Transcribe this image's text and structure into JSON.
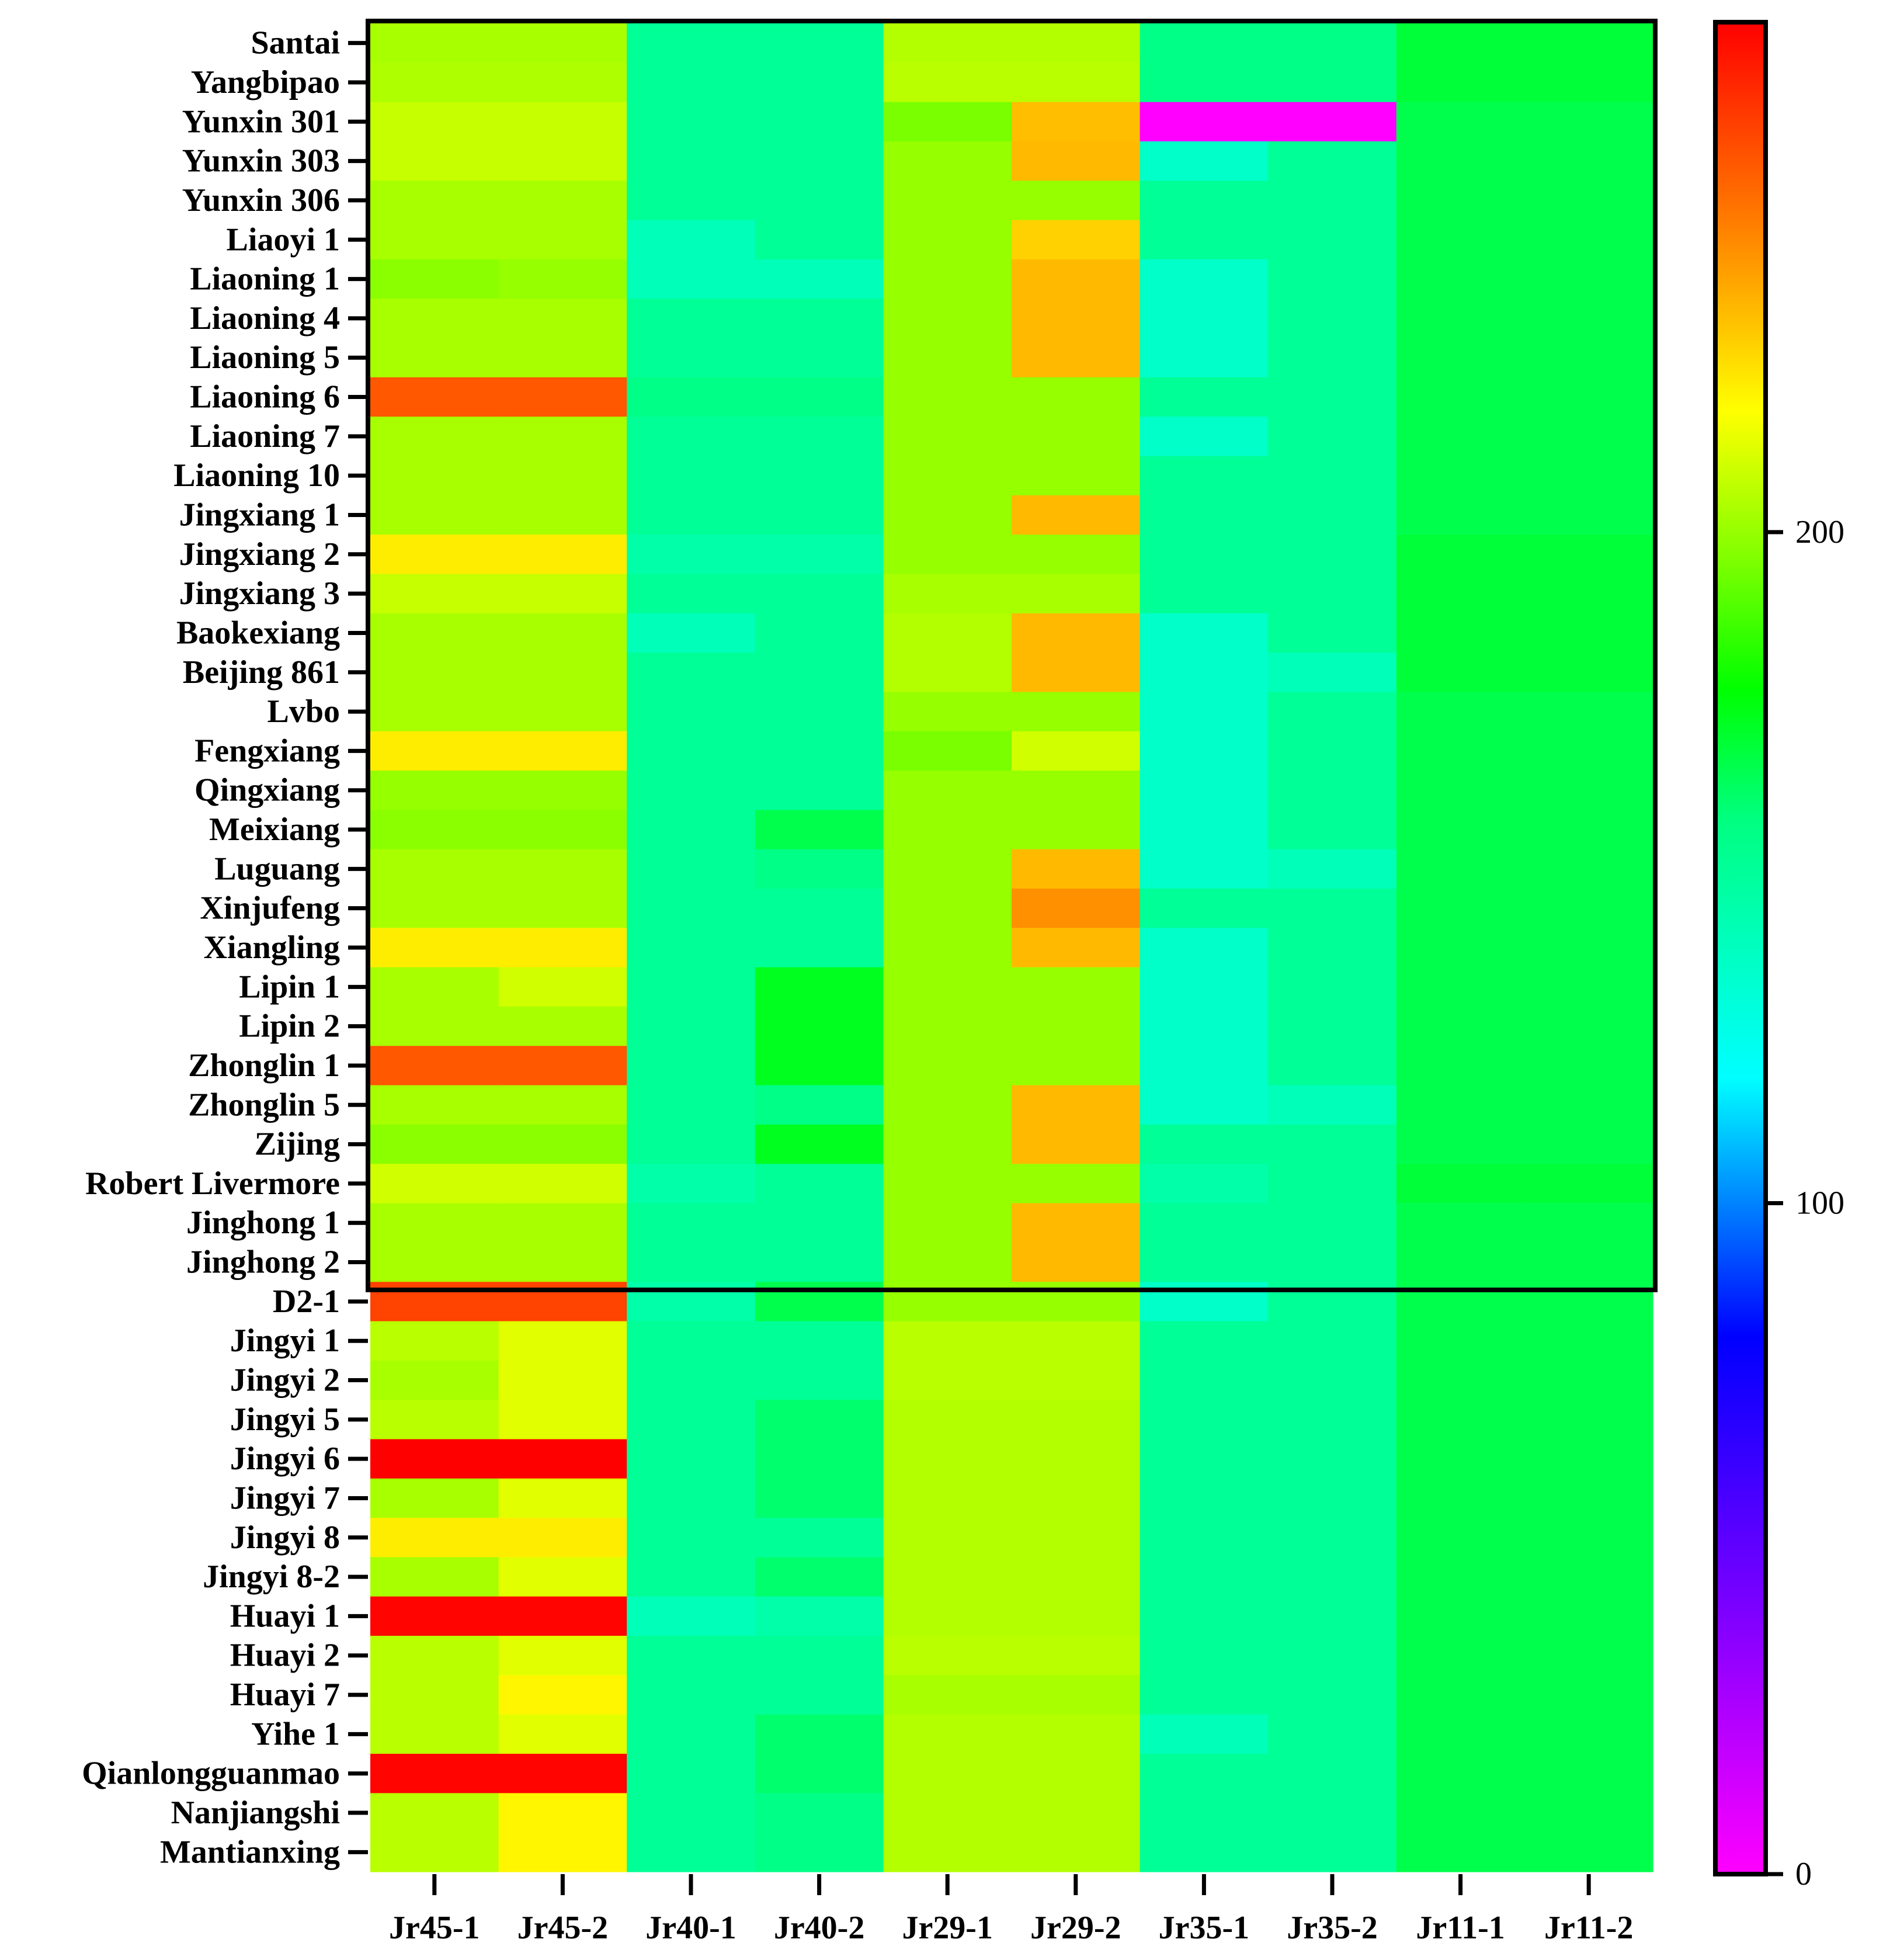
{
  "chart_data": {
    "type": "heatmap",
    "title": "",
    "xlabel": "",
    "ylabel": "",
    "columns": [
      "Jr45-1",
      "Jr45-2",
      "Jr40-1",
      "Jr40-2",
      "Jr29-1",
      "Jr29-2",
      "Jr35-1",
      "Jr35-2",
      "Jr11-1",
      "Jr11-2"
    ],
    "rows": [
      "Santai",
      "Yangbipao",
      "Yunxin 301",
      "Yunxin 303",
      "Yunxin 306",
      "Liaoyi 1",
      "Liaoning 1",
      "Liaoning 4",
      "Liaoning 5",
      "Liaoning 6",
      "Liaoning 7",
      "Liaoning 10",
      "Jingxiang 1",
      "Jingxiang 2",
      "Jingxiang 3",
      "Baokexiang",
      "Beijing 861",
      "Lvbo",
      "Fengxiang",
      "Qingxiang",
      "Meixiang",
      "Luguang",
      "Xinjufeng",
      "Xiangling",
      "Lipin 1",
      "Lipin 2",
      "Zhonglin 1",
      "Zhonglin 5",
      "Zijing",
      "Robert Livermore",
      "Jinghong 1",
      "Jinghong 2",
      "D2-1",
      "Jingyi 1",
      "Jingyi 2",
      "Jingyi 5",
      "Jingyi 6",
      "Jingyi 7",
      "Jingyi 8",
      "Jingyi 8-2",
      "Huayi 1",
      "Huayi 2",
      "Huayi 7",
      "Yihe 1",
      "Qianlongguanmao",
      "Nanjiangshi",
      "Mantianxing"
    ],
    "values": [
      [
        203,
        203,
        150,
        150,
        205,
        205,
        155,
        155,
        168,
        168
      ],
      [
        204,
        204,
        150,
        150,
        206,
        206,
        155,
        155,
        168,
        168
      ],
      [
        208,
        208,
        150,
        150,
        195,
        232,
        0,
        0,
        165,
        165
      ],
      [
        208,
        208,
        150,
        150,
        200,
        233,
        135,
        150,
        165,
        165
      ],
      [
        203,
        203,
        150,
        150,
        200,
        200,
        150,
        150,
        165,
        165
      ],
      [
        203,
        203,
        140,
        150,
        200,
        228,
        150,
        150,
        165,
        165
      ],
      [
        198,
        200,
        140,
        140,
        200,
        233,
        135,
        150,
        165,
        165
      ],
      [
        203,
        203,
        150,
        150,
        200,
        233,
        135,
        150,
        165,
        165
      ],
      [
        203,
        203,
        150,
        150,
        200,
        233,
        135,
        150,
        165,
        165
      ],
      [
        255,
        255,
        155,
        155,
        200,
        200,
        150,
        150,
        165,
        165
      ],
      [
        203,
        203,
        150,
        150,
        200,
        200,
        135,
        150,
        165,
        165
      ],
      [
        203,
        203,
        150,
        150,
        200,
        200,
        150,
        150,
        165,
        165
      ],
      [
        203,
        203,
        150,
        150,
        200,
        233,
        150,
        150,
        165,
        165
      ],
      [
        222,
        222,
        145,
        145,
        200,
        200,
        150,
        150,
        168,
        168
      ],
      [
        208,
        208,
        150,
        150,
        203,
        203,
        150,
        150,
        168,
        168
      ],
      [
        203,
        203,
        140,
        150,
        205,
        233,
        135,
        150,
        168,
        168
      ],
      [
        203,
        203,
        150,
        150,
        205,
        233,
        135,
        140,
        168,
        168
      ],
      [
        203,
        203,
        150,
        150,
        200,
        200,
        135,
        150,
        165,
        165
      ],
      [
        222,
        222,
        150,
        150,
        195,
        210,
        135,
        150,
        165,
        165
      ],
      [
        200,
        200,
        150,
        150,
        200,
        200,
        135,
        150,
        165,
        165
      ],
      [
        198,
        198,
        150,
        165,
        200,
        200,
        135,
        150,
        165,
        165
      ],
      [
        203,
        203,
        150,
        155,
        200,
        233,
        135,
        140,
        165,
        165
      ],
      [
        203,
        203,
        150,
        150,
        200,
        242,
        150,
        150,
        165,
        165
      ],
      [
        222,
        222,
        150,
        150,
        200,
        233,
        135,
        150,
        165,
        165
      ],
      [
        203,
        210,
        150,
        172,
        200,
        200,
        135,
        150,
        165,
        165
      ],
      [
        203,
        203,
        150,
        172,
        200,
        200,
        135,
        150,
        165,
        165
      ],
      [
        255,
        255,
        150,
        172,
        200,
        200,
        135,
        150,
        165,
        165
      ],
      [
        203,
        203,
        150,
        155,
        200,
        233,
        135,
        140,
        165,
        165
      ],
      [
        198,
        198,
        150,
        172,
        200,
        233,
        150,
        150,
        165,
        165
      ],
      [
        210,
        210,
        145,
        150,
        200,
        200,
        145,
        150,
        168,
        168
      ],
      [
        203,
        203,
        150,
        150,
        200,
        233,
        150,
        150,
        165,
        165
      ],
      [
        203,
        203,
        150,
        150,
        200,
        233,
        150,
        150,
        165,
        165
      ],
      [
        260,
        260,
        145,
        165,
        200,
        200,
        135,
        150,
        165,
        165
      ],
      [
        206,
        213,
        150,
        150,
        206,
        206,
        150,
        150,
        165,
        165
      ],
      [
        203,
        213,
        150,
        150,
        206,
        206,
        150,
        150,
        165,
        165
      ],
      [
        206,
        213,
        150,
        160,
        205,
        205,
        150,
        150,
        165,
        165
      ],
      [
        295,
        295,
        150,
        160,
        205,
        205,
        150,
        150,
        165,
        165
      ],
      [
        203,
        213,
        150,
        160,
        205,
        205,
        150,
        150,
        165,
        165
      ],
      [
        222,
        222,
        150,
        150,
        205,
        205,
        150,
        150,
        165,
        165
      ],
      [
        203,
        213,
        150,
        160,
        205,
        205,
        150,
        150,
        165,
        165
      ],
      [
        275,
        275,
        140,
        145,
        205,
        205,
        150,
        150,
        165,
        165
      ],
      [
        206,
        213,
        150,
        150,
        206,
        206,
        150,
        150,
        165,
        165
      ],
      [
        206,
        220,
        150,
        150,
        203,
        203,
        150,
        150,
        165,
        165
      ],
      [
        206,
        213,
        150,
        160,
        205,
        205,
        140,
        150,
        165,
        165
      ],
      [
        275,
        275,
        150,
        160,
        205,
        205,
        150,
        150,
        165,
        165
      ],
      [
        206,
        220,
        150,
        155,
        205,
        205,
        150,
        150,
        165,
        165
      ],
      [
        206,
        220,
        150,
        155,
        205,
        205,
        150,
        150,
        165,
        165
      ]
    ],
    "colorbar": {
      "range": [
        0,
        276
      ],
      "ticks": [
        0,
        100,
        200
      ],
      "tick_labels": [
        "0",
        "100",
        "200"
      ],
      "colormap": "magenta-blue-cyan-green-yellow-red"
    }
  }
}
